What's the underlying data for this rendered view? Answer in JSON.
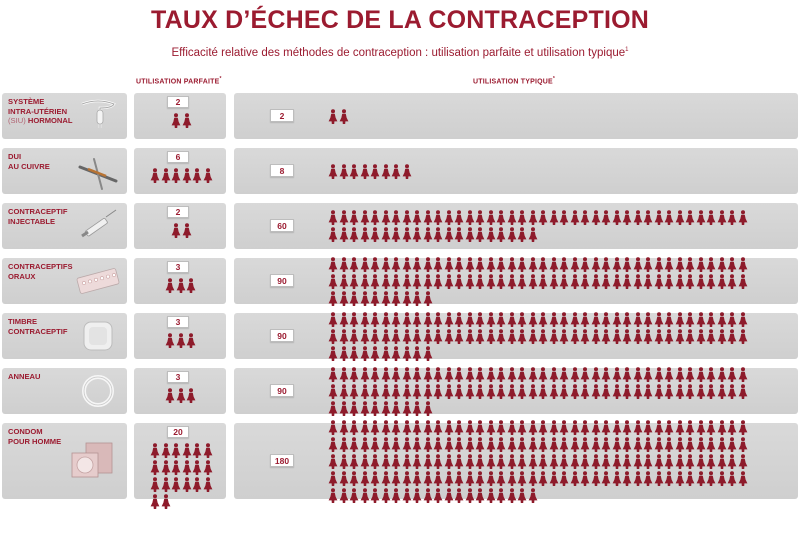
{
  "title": "TAUX D’ÉCHEC DE LA CONTRACEPTION",
  "subtitle": "Efficacité relative des méthodes de contraception : utilisation parfaite et utilisation typique",
  "subtitle_note": "1",
  "columns": {
    "perfect_label": "UTILISATION PARFAITE",
    "typical_label": "UTILISATION TYPIQUE",
    "asterisk": "*"
  },
  "colors": {
    "accent": "#9b1b30",
    "panel": "#d4d4d4",
    "figure": "#8e1b2b"
  },
  "chart_data": {
    "type": "table",
    "title": "TAUX D’ÉCHEC DE LA CONTRACEPTION",
    "subtitle": "Efficacité relative des méthodes de contraception : utilisation parfaite et utilisation typique",
    "series": [
      {
        "name": "UTILISATION PARFAITE",
        "values": [
          2,
          6,
          2,
          3,
          3,
          3,
          20
        ]
      },
      {
        "name": "UTILISATION TYPIQUE",
        "values": [
          2,
          8,
          60,
          90,
          90,
          90,
          180
        ]
      }
    ],
    "methods": [
      {
        "lines": [
          "SYSTÈME",
          "INTRA-UTÉRIEN"
        ],
        "pre": "(SIU)",
        "last": " HORMONAL",
        "icon": "iud-hormonal-icon",
        "perfect": "2",
        "typical": "2"
      },
      {
        "lines": [
          "DUI",
          "AU CUIVRE"
        ],
        "pre": "",
        "last": "",
        "icon": "copper-iud-icon",
        "perfect": "6",
        "typical": "8"
      },
      {
        "lines": [
          "CONTRACEPTIF",
          "INJECTABLE"
        ],
        "pre": "",
        "last": "",
        "icon": "syringe-icon",
        "perfect": "2",
        "typical": "60"
      },
      {
        "lines": [
          "CONTRACEPTIFS",
          "ORAUX"
        ],
        "pre": "",
        "last": "",
        "icon": "pill-pack-icon",
        "perfect": "3",
        "typical": "90"
      },
      {
        "lines": [
          "TIMBRE",
          "CONTRACEPTIF"
        ],
        "pre": "",
        "last": "",
        "icon": "patch-icon",
        "perfect": "3",
        "typical": "90"
      },
      {
        "lines": [
          "ANNEAU"
        ],
        "pre": "",
        "last": "",
        "icon": "ring-icon",
        "perfect": "3",
        "typical": "90"
      },
      {
        "lines": [
          "CONDOM",
          "POUR HOMME"
        ],
        "pre": "",
        "last": "",
        "icon": "condom-icon",
        "perfect": "20",
        "typical": "180"
      }
    ]
  }
}
